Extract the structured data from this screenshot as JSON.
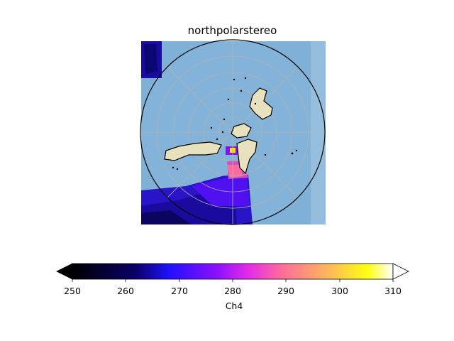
{
  "map": {
    "title": "northpolarstereo",
    "projection": "north polar stereographic",
    "ocean_color": "#7fb0d6",
    "land_color": "#e8e1bd",
    "coastline_color": "#000000",
    "gridline_color": "#b0b0b0"
  },
  "colorbar": {
    "label": "Ch4",
    "colormap": "gnuplot2",
    "vmin": 250,
    "vmax": 310,
    "extend": "both",
    "ticks": [
      "250",
      "260",
      "270",
      "280",
      "290",
      "300",
      "310"
    ]
  }
}
